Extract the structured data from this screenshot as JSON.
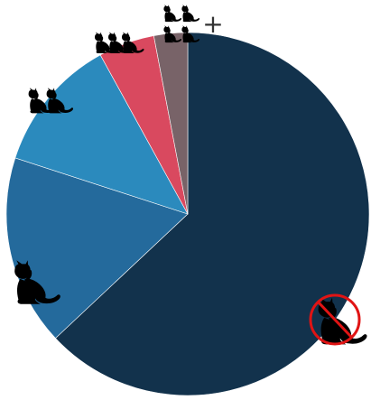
{
  "chart_data": {
    "type": "pie",
    "title": "",
    "start_angle_deg": 0,
    "direction": "clockwise",
    "slices": [
      {
        "label_icon": "no-cat-icon",
        "value": 0.63,
        "color": "#12324c"
      },
      {
        "label_icon": "cat-icon",
        "value": 0.17,
        "color": "#246a9c"
      },
      {
        "label_icon": "two-cats-icon",
        "value": 0.12,
        "color": "#2b8abd"
      },
      {
        "label_icon": "three-cats-icon",
        "value": 0.05,
        "color": "#d9495f"
      },
      {
        "label_icon": "four-plus-cats-icon",
        "value": 0.03,
        "color": "#786368"
      }
    ]
  },
  "labels": {
    "plus_text": "+"
  }
}
